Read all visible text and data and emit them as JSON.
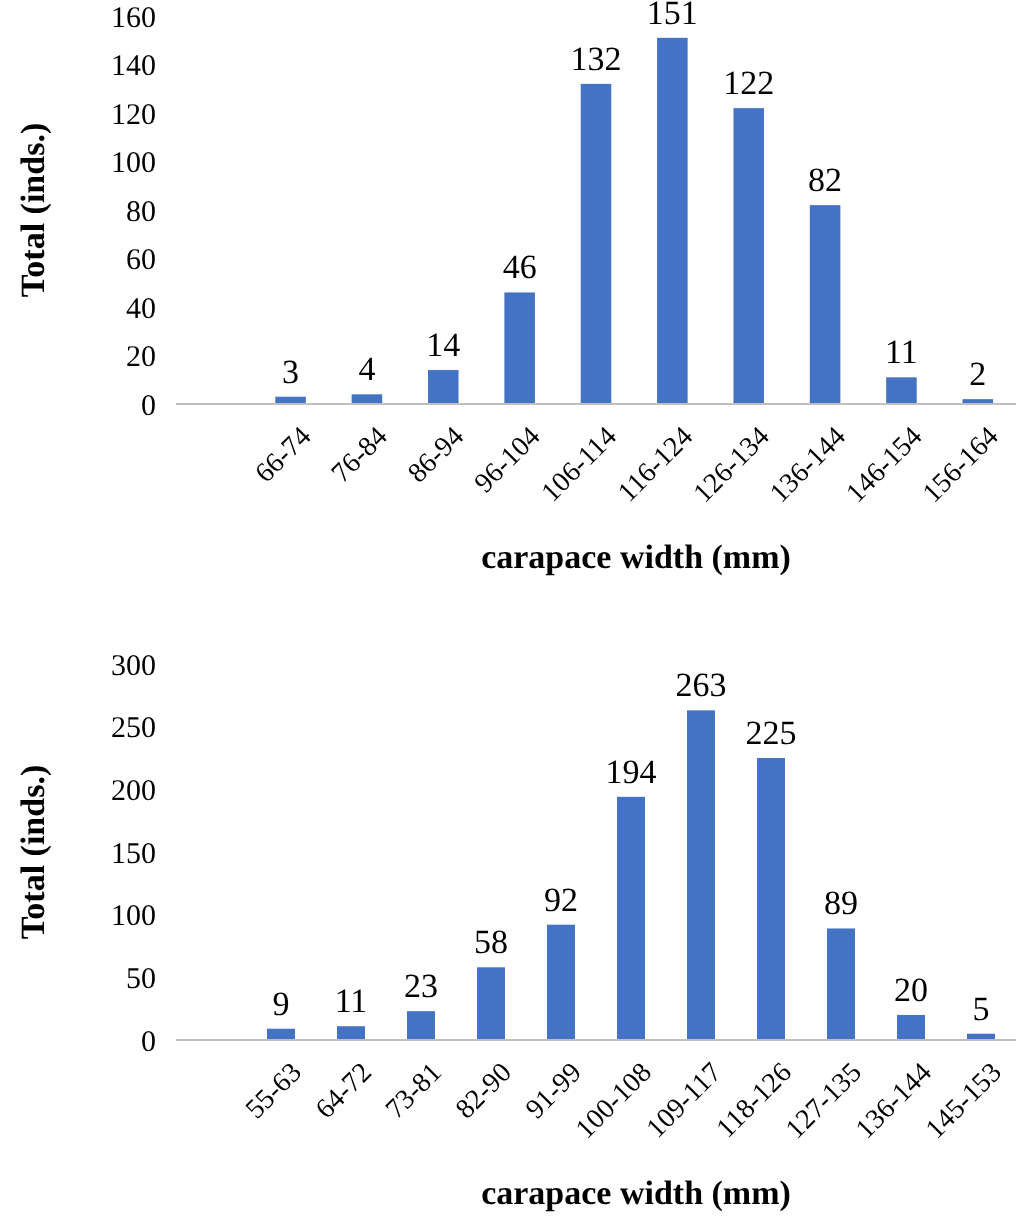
{
  "chart_data": [
    {
      "type": "bar",
      "xlabel": "carapace width (mm)",
      "ylabel": "Total (inds.)",
      "categories": [
        null,
        "66-74",
        "76-84",
        "86-94",
        "96-104",
        "106-114",
        "116-124",
        "126-134",
        "136-144",
        "146-154",
        "156-164"
      ],
      "values": [
        null,
        3,
        4,
        14,
        46,
        132,
        151,
        122,
        82,
        11,
        2
      ],
      "color": "#4472c4",
      "ylim": [
        0,
        160
      ],
      "yticks": [
        0,
        20,
        40,
        60,
        80,
        100,
        120,
        140,
        160
      ],
      "data_labels": true
    },
    {
      "type": "bar",
      "xlabel": "carapace width (mm)",
      "ylabel": "Total (inds.)",
      "categories": [
        null,
        "55-63",
        "64-72",
        "73-81",
        "82-90",
        "91-99",
        "100-108",
        "109-117",
        "118-126",
        "127-135",
        "136-144",
        "145-153"
      ],
      "values": [
        null,
        9,
        11,
        23,
        58,
        92,
        194,
        263,
        225,
        89,
        20,
        5
      ],
      "color": "#4472c4",
      "ylim": [
        0,
        300
      ],
      "yticks": [
        0,
        50,
        100,
        150,
        200,
        250,
        300
      ],
      "data_labels": true
    }
  ]
}
